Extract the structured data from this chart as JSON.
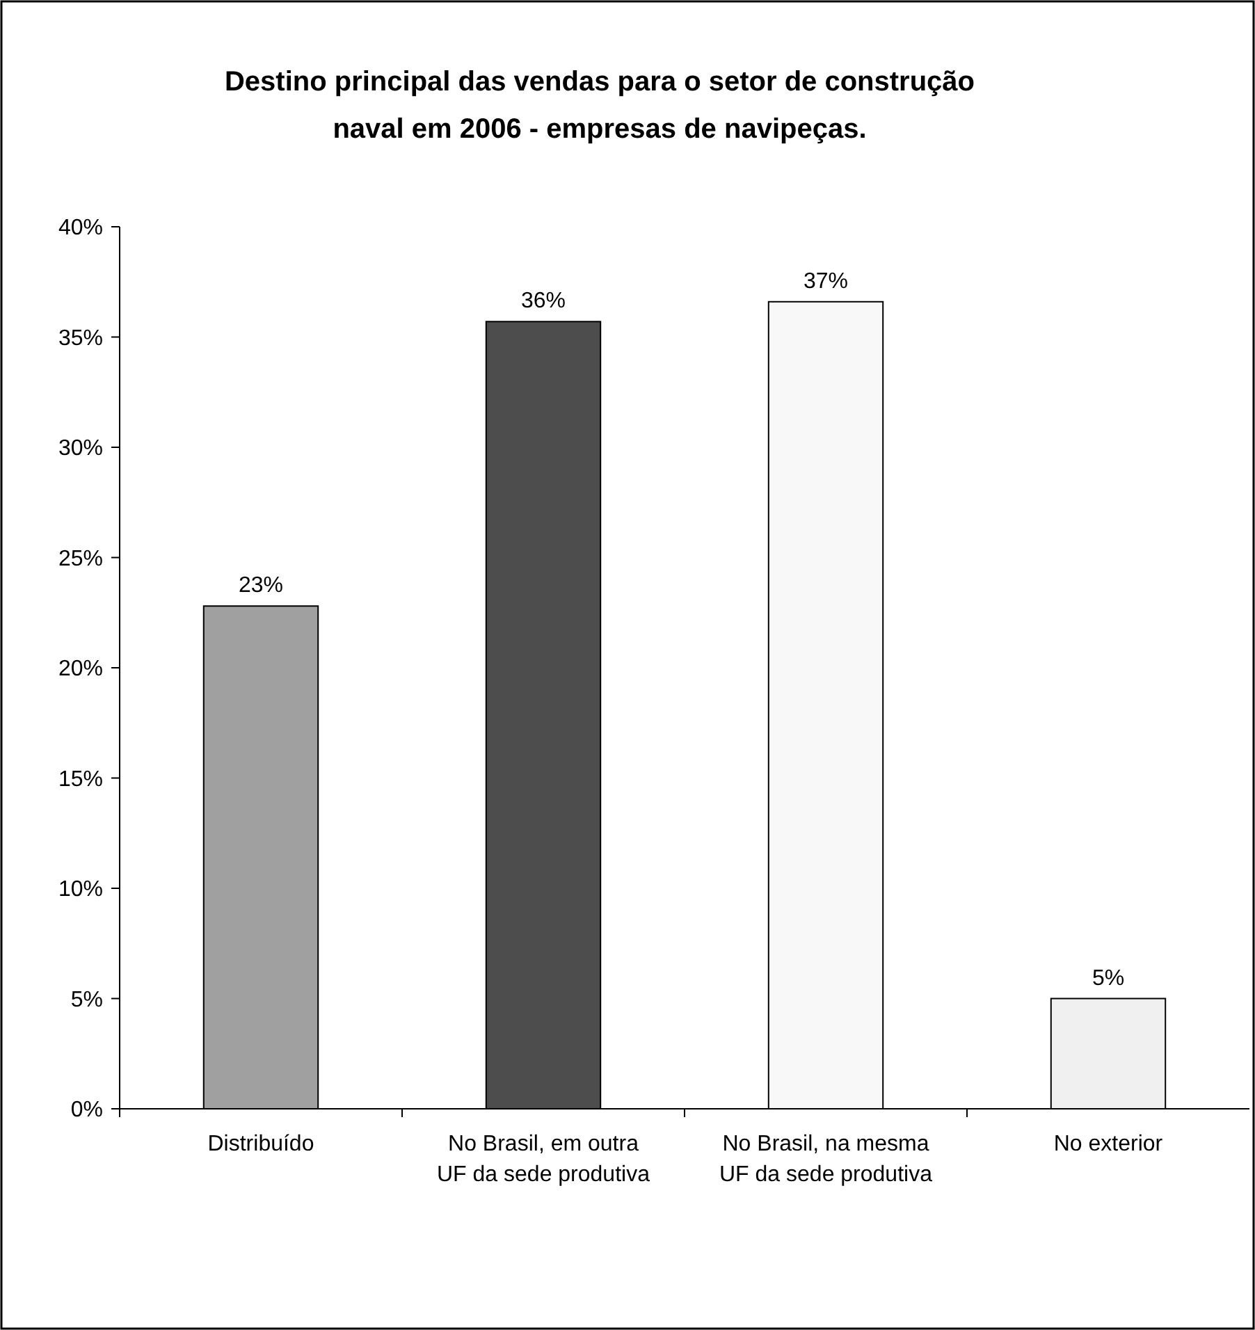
{
  "chart_data": {
    "type": "bar",
    "title": "Destino principal das vendas para o setor de construção naval em 2006 - empresas de navipeças.",
    "categories": [
      "Distribuído",
      "No Brasil, em outra UF da sede produtiva",
      "No Brasil, na mesma UF da sede produtiva",
      "No exterior"
    ],
    "values": [
      22.8,
      35.7,
      36.6,
      5
    ],
    "colors": [
      "#a0a0a0",
      "#4d4d4d",
      "#f8f8f8",
      "#f0f0f0"
    ],
    "value_labels": [
      "23%",
      "36%",
      "37%",
      "5%"
    ],
    "ylim": [
      0,
      40
    ],
    "yticks": [
      {
        "value": 0,
        "label": "0%"
      },
      {
        "value": 5,
        "label": "5%"
      },
      {
        "value": 10,
        "label": "10%"
      },
      {
        "value": 15,
        "label": "15%"
      },
      {
        "value": 20,
        "label": "20%"
      },
      {
        "value": 25,
        "label": "25%"
      },
      {
        "value": 30,
        "label": "30%"
      },
      {
        "value": 35,
        "label": "35%"
      },
      {
        "value": 40,
        "label": "40%"
      }
    ]
  }
}
